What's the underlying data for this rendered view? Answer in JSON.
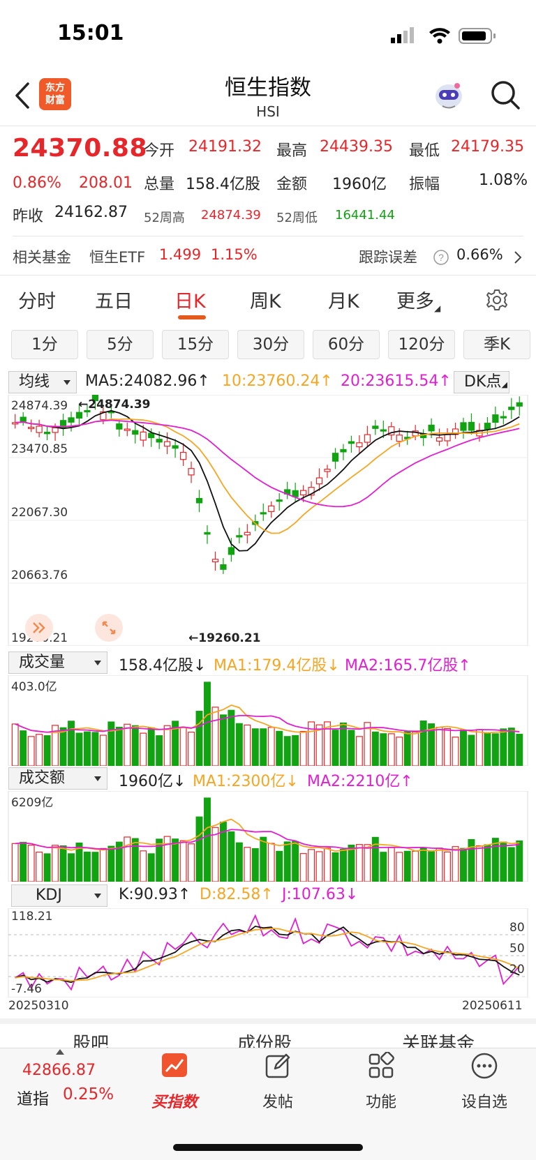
{
  "status": {
    "time": "15:01"
  },
  "header": {
    "title": "恒生指数",
    "subtitle": "HSI",
    "logo_text_line1": "东方",
    "logo_text_line2": "财富"
  },
  "quote": {
    "price": "24370.88",
    "change_pct": "0.86%",
    "change": "208.01",
    "prev_close_label": "昨收",
    "prev_close": "24162.87",
    "open_label": "今开",
    "open": "24191.32",
    "high_label": "最高",
    "high": "24439.35",
    "low_label": "最低",
    "low": "24179.35",
    "volume_label": "总量",
    "volume": "158.4亿股",
    "amount_label": "金额",
    "amount": "1960亿",
    "amplitude_label": "振幅",
    "amplitude": "1.08%",
    "wk52_high_label": "52周高",
    "wk52_high": "24874.39",
    "wk52_low_label": "52周低",
    "wk52_low": "16441.44"
  },
  "fund": {
    "label": "相关基金",
    "name": "恒生ETF",
    "price": "1.499",
    "pct": "1.15%",
    "tracking_label": "跟踪误差",
    "tracking_value": "0.66%"
  },
  "period_tabs": [
    "分时",
    "五日",
    "日K",
    "周K",
    "月K",
    "更多"
  ],
  "minute_buttons": [
    "1分",
    "5分",
    "15分",
    "30分",
    "60分",
    "120分",
    "季K"
  ],
  "main_chart": {
    "selector": "均线",
    "ma5": "MA5:24082.96↑",
    "ma10": "10:23760.24↑",
    "ma20": "20:23615.54↑",
    "dk_label": "DK点",
    "y_labels": [
      "24874.39",
      "23470.85",
      "22067.30",
      "20663.76",
      "19260.21"
    ],
    "high_mark": "24874.39",
    "low_mark": "19260.21"
  },
  "volume_chart": {
    "selector": "成交量",
    "value": "158.4亿股↓",
    "ma1": "MA1:179.4亿股↓",
    "ma2": "MA2:165.7亿股↑",
    "max_label": "403.0亿"
  },
  "amount_chart": {
    "selector": "成交额",
    "value": "1960亿↓",
    "ma1": "MA1:2300亿↓",
    "ma2": "MA2:2210亿↑",
    "max_label": "6209亿"
  },
  "kdj_chart": {
    "selector": "KDJ",
    "k": "K:90.93↑",
    "d": "D:82.58↑",
    "j": "J:107.63↓",
    "max_label": "118.21",
    "min_label": "-7.46",
    "levels": [
      "80",
      "50",
      "20"
    ],
    "start_date": "20250310",
    "end_date": "20250611"
  },
  "bottom_tabs": [
    "股吧",
    "成份股",
    "关联基金"
  ],
  "bottom_nav": {
    "ticker_value": "42866.87",
    "ticker_name": "道指",
    "ticker_pct": "0.25%",
    "items": [
      "买指数",
      "发帖",
      "功能",
      "设自选"
    ]
  },
  "colors": {
    "up": "#e5262a",
    "down": "#11a311",
    "ma10": "#f5a623",
    "ma20": "#e020d0",
    "accent": "#e55a1c"
  }
}
